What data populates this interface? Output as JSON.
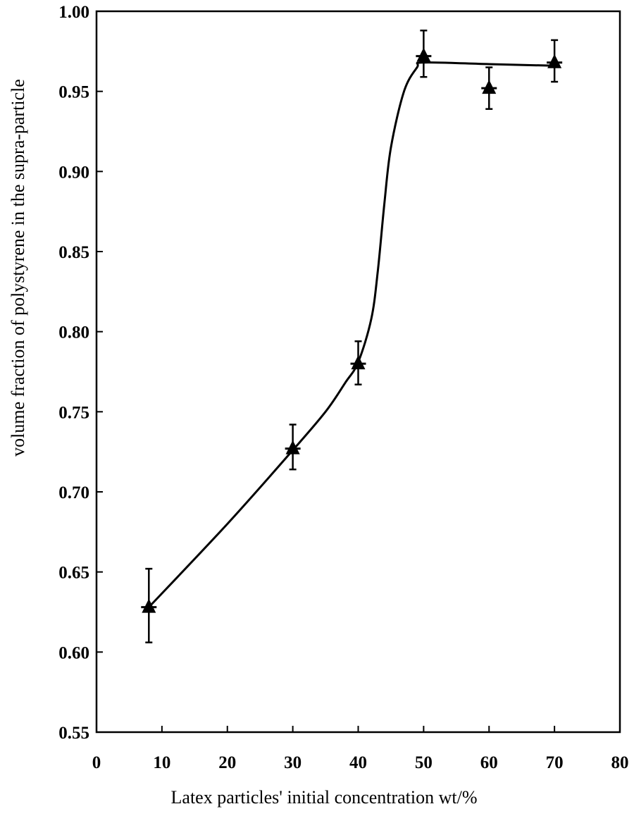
{
  "chart_data": {
    "type": "scatter",
    "title": "",
    "xlabel": "Latex particles' initial  concentration wt/%",
    "ylabel": "volume fraction of polystyrene in the supra-particle",
    "xlim": [
      0,
      80
    ],
    "ylim": [
      0.55,
      1.0
    ],
    "x_ticks": [
      "0",
      "10",
      "20",
      "30",
      "40",
      "50",
      "60",
      "70",
      "80"
    ],
    "y_ticks": [
      "0.55",
      "0.60",
      "0.65",
      "0.70",
      "0.75",
      "0.80",
      "0.85",
      "0.90",
      "0.95",
      "1.00"
    ],
    "grid": false,
    "legend": "none",
    "marker": "triangle",
    "series": [
      {
        "points": [
          {
            "x": 8,
            "y": 0.628,
            "yerr_low": 0.022,
            "yerr_high": 0.024
          },
          {
            "x": 30,
            "y": 0.727,
            "yerr_low": 0.013,
            "yerr_high": 0.015
          },
          {
            "x": 40,
            "y": 0.78,
            "yerr_low": 0.013,
            "yerr_high": 0.014
          },
          {
            "x": 50,
            "y": 0.972,
            "yerr_low": 0.013,
            "yerr_high": 0.016
          },
          {
            "x": 60,
            "y": 0.952,
            "yerr_low": 0.013,
            "yerr_high": 0.013
          },
          {
            "x": 70,
            "y": 0.968,
            "yerr_low": 0.012,
            "yerr_high": 0.014
          }
        ]
      }
    ],
    "trend_curve": [
      [
        8,
        0.628
      ],
      [
        20,
        0.68
      ],
      [
        30,
        0.726
      ],
      [
        35,
        0.75
      ],
      [
        38,
        0.768
      ],
      [
        40,
        0.781
      ],
      [
        42,
        0.808
      ],
      [
        43,
        0.838
      ],
      [
        44,
        0.88
      ],
      [
        45,
        0.915
      ],
      [
        47,
        0.95
      ],
      [
        49,
        0.965
      ],
      [
        50,
        0.968
      ],
      [
        60,
        0.967
      ],
      [
        70,
        0.966
      ]
    ]
  }
}
